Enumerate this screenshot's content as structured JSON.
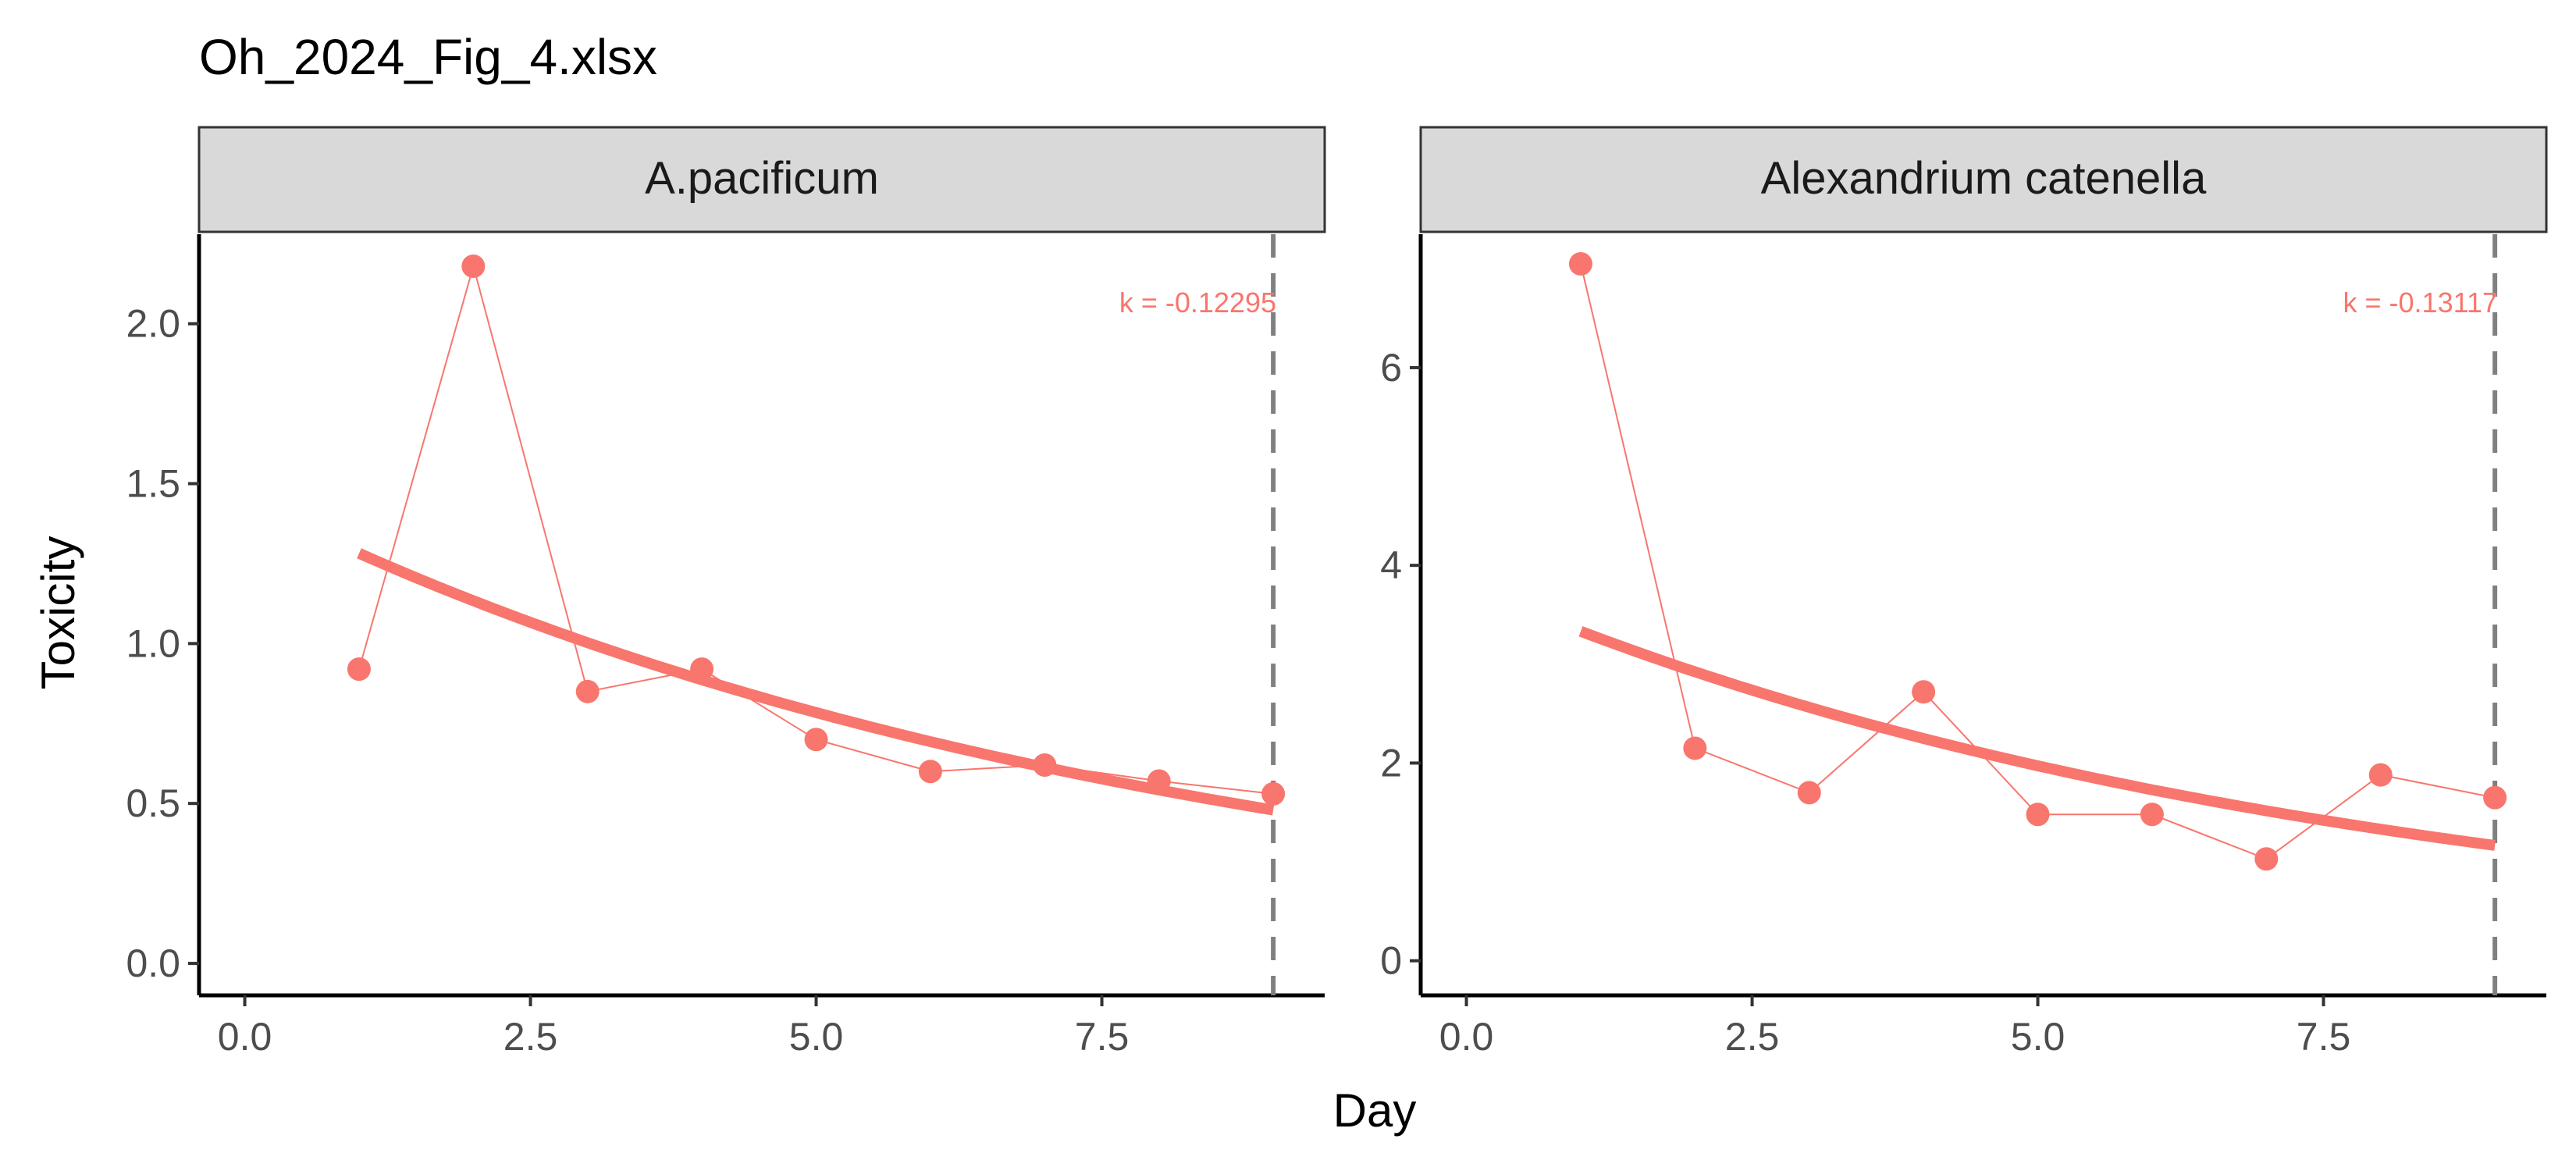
{
  "chart_data": {
    "type": "line",
    "title": "Oh_2024_Fig_4.xlsx",
    "xlabel": "Day",
    "ylabel": "Toxicity",
    "color": "#f8766d",
    "reference_line": {
      "x": 9,
      "style": "dashed",
      "color": "#808080"
    },
    "panels": [
      {
        "strip": "A.pacificum",
        "k_label": "k = -0.12295",
        "xlim": [
          -0.4,
          9.45
        ],
        "ylim": [
          -0.1,
          2.28
        ],
        "xticks": [
          0,
          2.5,
          5,
          7.5
        ],
        "xtick_labels": [
          "0.0",
          "2.5",
          "5.0",
          "7.5"
        ],
        "yticks": [
          0,
          0.5,
          1,
          1.5,
          2
        ],
        "ytick_labels": [
          "0.0",
          "0.5",
          "1.0",
          "1.5",
          "2.0"
        ],
        "points": {
          "x": [
            1,
            2,
            3,
            4,
            5,
            6,
            7,
            8,
            9
          ],
          "y": [
            0.92,
            2.18,
            0.85,
            0.92,
            0.7,
            0.6,
            0.62,
            0.57,
            0.53
          ]
        },
        "fit": {
          "model": "exponential",
          "a": 1.45,
          "k": -0.12295,
          "x_range": [
            1,
            9
          ]
        }
      },
      {
        "strip": "Alexandrium catenella",
        "k_label": "k = -0.13117",
        "xlim": [
          -0.4,
          9.45
        ],
        "ylim": [
          -0.35,
          7.35
        ],
        "xticks": [
          0,
          2.5,
          5,
          7.5
        ],
        "xtick_labels": [
          "0.0",
          "2.5",
          "5.0",
          "7.5"
        ],
        "yticks": [
          0,
          2,
          4,
          6
        ],
        "ytick_labels": [
          "0",
          "2",
          "4",
          "6"
        ],
        "points": {
          "x": [
            1,
            2,
            3,
            4,
            5,
            6,
            7,
            8,
            9
          ],
          "y": [
            7.05,
            2.15,
            1.7,
            2.72,
            1.48,
            1.48,
            1.03,
            1.88,
            1.65
          ]
        },
        "fit": {
          "model": "exponential",
          "a": 3.8,
          "k": -0.13117,
          "x_range": [
            1,
            9
          ]
        }
      }
    ]
  }
}
